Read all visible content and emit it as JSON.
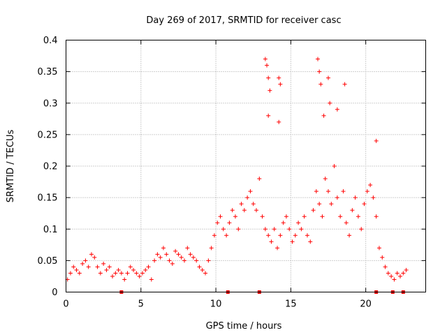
{
  "chart_data": {
    "type": "scatter",
    "title": "Day 269 of 2017, SRMTID for receiver casc",
    "xlabel": "GPS time / hours",
    "ylabel": "SRMTID / TECUs",
    "xlim": [
      0,
      24
    ],
    "ylim": [
      0,
      0.4
    ],
    "x_ticks": [
      0,
      5,
      10,
      15,
      20
    ],
    "x_tick_labels": [
      "0",
      "5",
      "10",
      "15",
      "20"
    ],
    "y_ticks": [
      0,
      0.05,
      0.1,
      0.15,
      0.2,
      0.25,
      0.3,
      0.35,
      0.4
    ],
    "y_tick_labels": [
      "0",
      "0.05",
      "0.1",
      "0.15",
      "0.2",
      "0.25",
      "0.3",
      "0.35",
      "0.4"
    ],
    "grid": true,
    "marker": "+",
    "color": "#ff0000",
    "marker_color": "#e00000",
    "series": [
      {
        "name": "SRMTID",
        "x": [
          0.1,
          0.3,
          0.5,
          0.7,
          0.9,
          1.1,
          1.3,
          1.5,
          1.7,
          1.9,
          2.1,
          2.3,
          2.5,
          2.7,
          2.9,
          3.1,
          3.3,
          3.5,
          3.7,
          3.9,
          4.1,
          4.3,
          4.5,
          4.7,
          4.9,
          5.1,
          5.3,
          5.5,
          5.7,
          5.9,
          6.1,
          6.3,
          6.5,
          6.7,
          6.9,
          7.1,
          7.3,
          7.5,
          7.7,
          7.9,
          8.1,
          8.3,
          8.5,
          8.7,
          8.9,
          9.1,
          9.3,
          9.5,
          9.7,
          9.9,
          10.1,
          10.3,
          10.5,
          10.7,
          10.9,
          11.1,
          11.3,
          11.5,
          11.7,
          11.9,
          12.1,
          12.3,
          12.5,
          12.7,
          12.9,
          13.1,
          13.3,
          13.5,
          13.7,
          13.9,
          14.1,
          14.3,
          14.5,
          14.7,
          14.9,
          15.1,
          15.3,
          15.5,
          15.7,
          15.9,
          16.1,
          16.3,
          16.5,
          16.7,
          16.9,
          17.1,
          17.3,
          17.5,
          17.7,
          17.9,
          18.1,
          18.3,
          18.5,
          18.7,
          18.9,
          19.1,
          19.3,
          19.5,
          19.7,
          19.9,
          20.1,
          20.3,
          20.5,
          20.7,
          20.9,
          21.1,
          21.3,
          21.5,
          21.7,
          21.9,
          22.1,
          22.3,
          22.5,
          22.7
        ],
        "y": [
          0.02,
          0.03,
          0.04,
          0.035,
          0.03,
          0.045,
          0.05,
          0.04,
          0.06,
          0.055,
          0.04,
          0.03,
          0.045,
          0.035,
          0.04,
          0.025,
          0.03,
          0.035,
          0.03,
          0.02,
          0.03,
          0.04,
          0.035,
          0.03,
          0.025,
          0.03,
          0.035,
          0.04,
          0.02,
          0.05,
          0.06,
          0.055,
          0.07,
          0.06,
          0.05,
          0.045,
          0.065,
          0.06,
          0.055,
          0.05,
          0.07,
          0.06,
          0.055,
          0.05,
          0.04,
          0.035,
          0.03,
          0.05,
          0.07,
          0.09,
          0.11,
          0.12,
          0.1,
          0.09,
          0.11,
          0.13,
          0.12,
          0.1,
          0.14,
          0.13,
          0.15,
          0.16,
          0.14,
          0.13,
          0.18,
          0.12,
          0.1,
          0.09,
          0.08,
          0.1,
          0.07,
          0.09,
          0.11,
          0.12,
          0.1,
          0.08,
          0.09,
          0.11,
          0.1,
          0.12,
          0.09,
          0.08,
          0.13,
          0.16,
          0.14,
          0.12,
          0.18,
          0.16,
          0.14,
          0.2,
          0.15,
          0.12,
          0.16,
          0.11,
          0.09,
          0.13,
          0.15,
          0.12,
          0.1,
          0.14,
          0.16,
          0.17,
          0.15,
          0.12,
          0.07,
          0.055,
          0.04,
          0.03,
          0.025,
          0.02,
          0.03,
          0.025,
          0.03,
          0.035
        ],
        "outlier_x": [
          13.3,
          13.4,
          13.5,
          13.6,
          14.2,
          14.3,
          16.8,
          16.9,
          17.0,
          17.5,
          18.6,
          20.7,
          13.5,
          14.2,
          17.2,
          17.6,
          18.1
        ],
        "outlier_y": [
          0.37,
          0.36,
          0.34,
          0.32,
          0.34,
          0.33,
          0.37,
          0.35,
          0.33,
          0.34,
          0.33,
          0.24,
          0.28,
          0.27,
          0.28,
          0.3,
          0.29
        ]
      }
    ],
    "gap_markers_x": [
      3.7,
      10.8,
      12.9,
      20.7,
      21.8,
      22.5
    ]
  }
}
